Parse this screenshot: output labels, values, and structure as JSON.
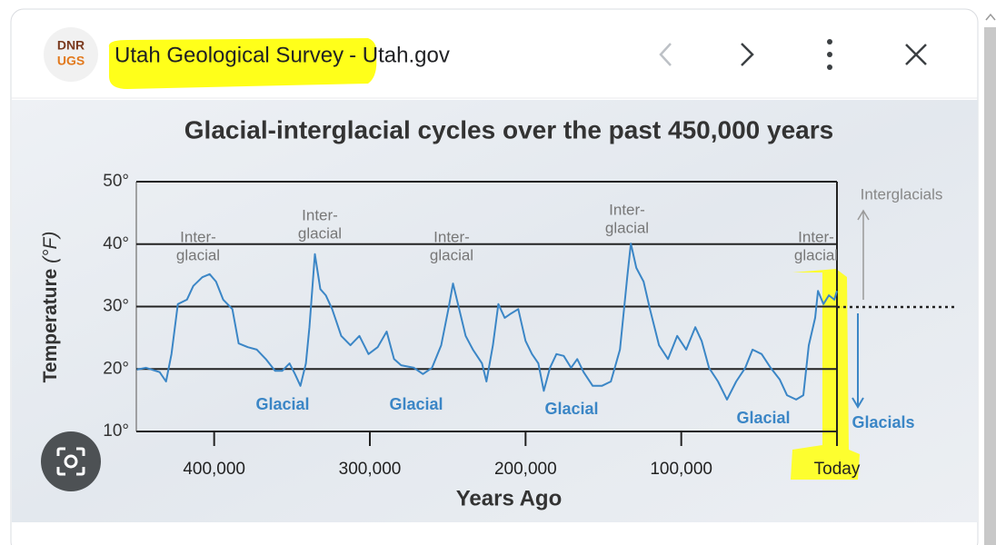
{
  "header": {
    "logo_top": "DNR",
    "logo_bottom": "UGS",
    "source": "Utah Geological Survey",
    "site": "- Utah.gov"
  },
  "chart_data": {
    "type": "line",
    "title": "Glacial-interglacial cycles over the past 450,000 years",
    "xlabel": "Years Ago",
    "ylabel": "Temperature",
    "ylabel_unit": "(°F)",
    "xlim": [
      450000,
      0
    ],
    "ylim": [
      10,
      50
    ],
    "xticks": [
      {
        "value": 400000,
        "label": "400,000"
      },
      {
        "value": 300000,
        "label": "300,000"
      },
      {
        "value": 200000,
        "label": "200,000"
      },
      {
        "value": 100000,
        "label": "100,000"
      },
      {
        "value": 0,
        "label": "Today"
      }
    ],
    "yticks": [
      {
        "value": 10,
        "label": "10°"
      },
      {
        "value": 20,
        "label": "20°"
      },
      {
        "value": 30,
        "label": "30°"
      },
      {
        "value": 40,
        "label": "40°"
      },
      {
        "value": 50,
        "label": "50°"
      }
    ],
    "grid": true,
    "series": [
      {
        "color": "#3b86c6",
        "x": [
          449600,
          443700,
          435000,
          430900,
          427400,
          423300,
          417500,
          413400,
          407600,
          402900,
          398800,
          394200,
          388300,
          384300,
          378400,
          372600,
          366800,
          360900,
          356300,
          351600,
          348100,
          344600,
          341100,
          338800,
          335300,
          331800,
          328300,
          324200,
          318400,
          312500,
          306700,
          300900,
          295000,
          289200,
          284500,
          279900,
          271700,
          265900,
          260100,
          254200,
          249600,
          246600,
          242600,
          238500,
          233800,
          228000,
          225100,
          221000,
          217500,
          213400,
          209300,
          204700,
          200000,
          195900,
          191800,
          188300,
          184300,
          180200,
          175500,
          170800,
          166800,
          162700,
          156900,
          151000,
          145200,
          139400,
          134700,
          132400,
          128900,
          124200,
          120100,
          114300,
          108500,
          102600,
          96800,
          91000,
          86900,
          82200,
          76400,
          70600,
          64700,
          58900,
          54200,
          48400,
          42600,
          36700,
          32100,
          26200,
          21600,
          18100,
          14000,
          12200,
          8700,
          5200,
          1700,
          0
        ],
        "values": [
          19.9,
          20.2,
          19.5,
          18.0,
          22.4,
          30.4,
          31.1,
          33.3,
          34.7,
          35.2,
          34.0,
          31.1,
          29.6,
          24.1,
          23.5,
          23.1,
          21.6,
          19.7,
          19.7,
          20.9,
          19.2,
          17.3,
          20.9,
          26.7,
          38.4,
          32.8,
          31.8,
          29.6,
          25.3,
          23.8,
          25.3,
          22.4,
          23.5,
          26.0,
          21.6,
          20.6,
          20.2,
          19.2,
          20.2,
          23.8,
          29.6,
          33.7,
          29.6,
          25.3,
          23.1,
          20.9,
          18.0,
          23.8,
          30.4,
          28.2,
          28.9,
          29.6,
          24.5,
          22.4,
          20.9,
          16.5,
          20.2,
          22.4,
          22.1,
          20.2,
          21.6,
          19.5,
          17.3,
          17.3,
          18.0,
          23.1,
          34.7,
          40.1,
          36.2,
          34.0,
          29.6,
          23.8,
          21.6,
          25.3,
          23.1,
          26.7,
          24.5,
          20.2,
          18.0,
          15.1,
          18.0,
          20.2,
          23.1,
          22.4,
          20.2,
          18.3,
          15.8,
          15.1,
          15.8,
          23.8,
          28.2,
          32.5,
          30.4,
          31.8,
          31.1,
          32.5
        ]
      }
    ],
    "annotations": [
      {
        "text": [
          "Inter-",
          "glacial"
        ]
      },
      {
        "text": [
          "Inter-",
          "glacial"
        ]
      },
      {
        "text": [
          "Inter-",
          "glacial"
        ]
      },
      {
        "text": [
          "Inter-",
          "glacial"
        ]
      },
      {
        "text": [
          "Inter-",
          "glacial"
        ]
      },
      {
        "text": [
          "Glacial"
        ]
      },
      {
        "text": [
          "Glacial"
        ]
      },
      {
        "text": [
          "Glacial"
        ]
      },
      {
        "text": [
          "Glacial"
        ]
      },
      {
        "text": [
          "Interglacials"
        ]
      },
      {
        "text": [
          "Glacials"
        ]
      }
    ]
  }
}
